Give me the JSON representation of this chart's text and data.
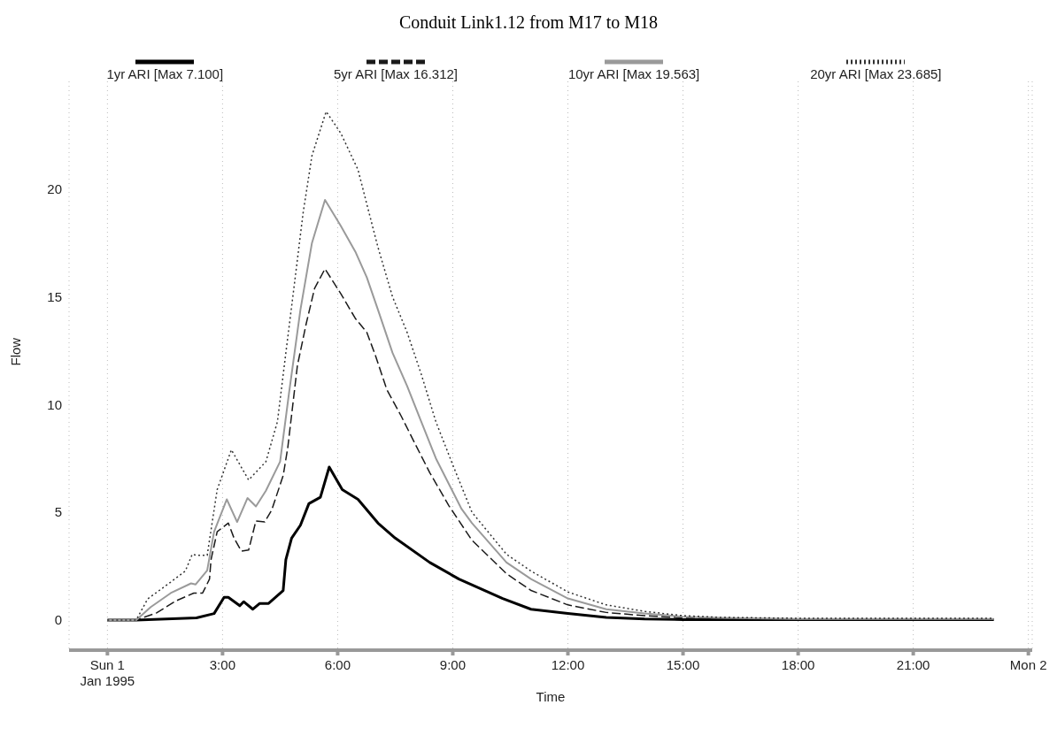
{
  "chart_data": {
    "type": "line",
    "title": "Conduit Link1.12 from M17 to M18",
    "xlabel": "Time",
    "ylabel": "Flow",
    "xlim": [
      -1,
      24.1
    ],
    "ylim": [
      -1.4,
      25
    ],
    "xticks": [
      {
        "value": 0,
        "label": "Sun 1\nJan 1995"
      },
      {
        "value": 3,
        "label": "3:00"
      },
      {
        "value": 6,
        "label": "6:00"
      },
      {
        "value": 9,
        "label": "9:00"
      },
      {
        "value": 12,
        "label": "12:00"
      },
      {
        "value": 15,
        "label": "15:00"
      },
      {
        "value": 18,
        "label": "18:00"
      },
      {
        "value": 21,
        "label": "21:00"
      },
      {
        "value": 24,
        "label": "Mon 2"
      }
    ],
    "yticks": [
      0,
      5,
      10,
      15,
      20
    ],
    "grid": "x",
    "legend": "top",
    "marker": "none",
    "series": [
      {
        "name": "1yr ARI [Max 7.100]",
        "color": "#000000",
        "line_style": "solid",
        "x": [
          0,
          0.75,
          2.32,
          2.78,
          3.04,
          3.15,
          3.45,
          3.55,
          3.79,
          3.97,
          4.2,
          4.58,
          4.65,
          4.8,
          5.03,
          5.25,
          5.55,
          5.78,
          6.12,
          6.53,
          7.05,
          7.5,
          8.4,
          9.16,
          10.3,
          11.04,
          12,
          13,
          14,
          15,
          17,
          19,
          21,
          23.1
        ],
        "values": [
          0,
          0,
          0.1,
          0.3,
          1.05,
          1.05,
          0.66,
          0.85,
          0.5,
          0.77,
          0.77,
          1.37,
          2.8,
          3.8,
          4.4,
          5.4,
          5.7,
          7.1,
          6.05,
          5.6,
          4.5,
          3.8,
          2.67,
          1.9,
          1,
          0.5,
          0.3,
          0.12,
          0.05,
          0.02,
          0.02,
          0.02,
          0.02,
          0.02
        ]
      },
      {
        "name": "5yr ARI [Max 16.312]",
        "color": "#1a1a1a",
        "line_style": "dashed",
        "x": [
          0,
          0.75,
          1.28,
          1.8,
          2.25,
          2.48,
          2.66,
          2.7,
          2.86,
          3.15,
          3.3,
          3.49,
          3.68,
          3.87,
          4.1,
          4.28,
          4.58,
          4.7,
          4.95,
          5.18,
          5.4,
          5.67,
          6.08,
          6.46,
          6.76,
          6.98,
          7.28,
          7.66,
          8.04,
          8.4,
          8.9,
          9.5,
          10.4,
          11.04,
          12,
          13,
          14,
          15,
          17,
          19,
          21,
          23.1
        ],
        "values": [
          0,
          0,
          0.33,
          0.9,
          1.25,
          1.25,
          1.9,
          2.8,
          4.1,
          4.5,
          3.8,
          3.2,
          3.25,
          4.6,
          4.55,
          5.1,
          6.7,
          8,
          11.8,
          13.75,
          15.4,
          16.3,
          15.15,
          14,
          13.35,
          12.3,
          10.7,
          9.45,
          8.1,
          6.84,
          5.3,
          3.7,
          2.15,
          1.37,
          0.7,
          0.35,
          0.2,
          0.1,
          0.05,
          0.05,
          0.05,
          0.05
        ]
      },
      {
        "name": "10yr ARI [Max 19.563]",
        "color": "#9a9a9a",
        "line_style": "solid",
        "x": [
          0,
          0.75,
          1.13,
          1.65,
          2.18,
          2.3,
          2.6,
          2.78,
          3.11,
          3.38,
          3.65,
          3.87,
          4.13,
          4.5,
          4.73,
          5.03,
          5.33,
          5.67,
          6.08,
          6.46,
          6.76,
          7.05,
          7.43,
          7.81,
          8.18,
          8.56,
          9.23,
          9.5,
          10.4,
          11.04,
          12,
          13,
          14,
          15,
          16,
          18,
          20,
          22,
          23.1
        ],
        "values": [
          0,
          0,
          0.6,
          1.25,
          1.7,
          1.65,
          2.3,
          4.1,
          5.6,
          4.55,
          5.66,
          5.27,
          6,
          7.35,
          10.5,
          14.4,
          17.5,
          19.5,
          18.3,
          17.1,
          15.9,
          14.4,
          12.4,
          10.86,
          9.2,
          7.5,
          5.15,
          4.5,
          2.67,
          1.9,
          1,
          0.5,
          0.3,
          0.15,
          0.1,
          0.05,
          0.05,
          0.05,
          0.05
        ]
      },
      {
        "name": "20yr ARI [Max 23.685]",
        "color": "#333333",
        "line_style": "dotted",
        "x": [
          0,
          0.75,
          1.05,
          1.65,
          2.03,
          2.21,
          2.34,
          2.6,
          2.86,
          3.23,
          3.68,
          4.13,
          4.43,
          4.65,
          4.88,
          5.1,
          5.33,
          5.7,
          6.08,
          6.53,
          6.76,
          7.05,
          7.43,
          7.81,
          8.18,
          8.56,
          9,
          9.5,
          10.4,
          11.04,
          12,
          13,
          14,
          15,
          16,
          18,
          20,
          22,
          23.1
        ],
        "values": [
          0,
          0,
          0.98,
          1.76,
          2.27,
          3.05,
          3,
          3,
          6.05,
          7.9,
          6.5,
          7.35,
          9.2,
          12.4,
          15.7,
          18.9,
          21.55,
          23.6,
          22.6,
          20.9,
          19.3,
          17.3,
          15,
          13.35,
          11.4,
          9.2,
          7.2,
          5,
          3.05,
          2.27,
          1.3,
          0.7,
          0.4,
          0.2,
          0.12,
          0.08,
          0.08,
          0.08,
          0.08
        ]
      }
    ]
  }
}
